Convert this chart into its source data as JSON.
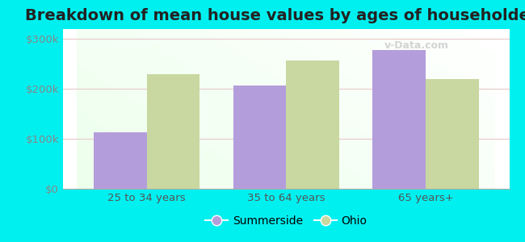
{
  "title": "Breakdown of mean house values by ages of householders",
  "categories": [
    "25 to 34 years",
    "35 to 64 years",
    "65 years+"
  ],
  "summerside_values": [
    113000,
    207000,
    278000
  ],
  "ohio_values": [
    230000,
    257000,
    220000
  ],
  "summerside_color": "#b39ddb",
  "ohio_color": "#c8d8a0",
  "background_outer": "#00f0f0",
  "ylim": [
    0,
    320000
  ],
  "yticks": [
    0,
    100000,
    200000,
    300000
  ],
  "ytick_labels": [
    "$0",
    "$100k",
    "$200k",
    "$300k"
  ],
  "legend_labels": [
    "Summerside",
    "Ohio"
  ],
  "bar_width": 0.38,
  "title_fontsize": 14,
  "axis_fontsize": 9.5,
  "legend_fontsize": 10,
  "watermark": "v-Data.com"
}
